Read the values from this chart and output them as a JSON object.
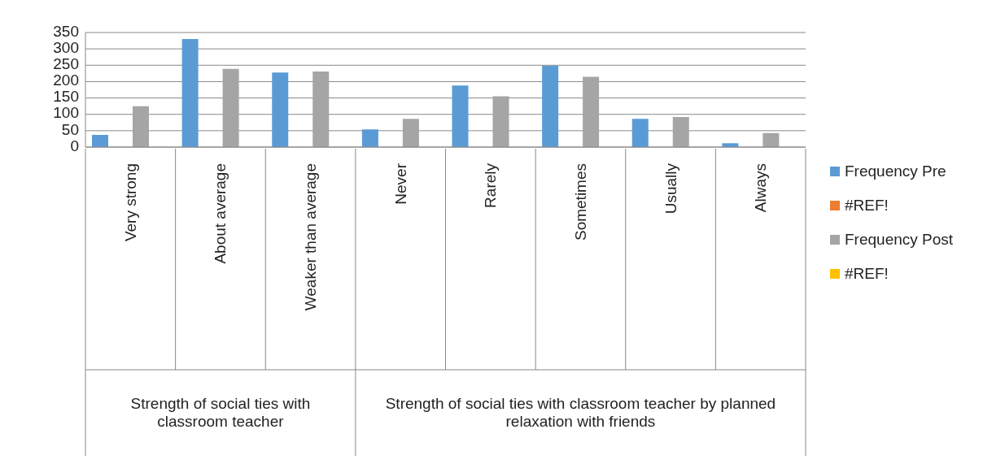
{
  "chart_data": {
    "type": "bar",
    "categories": [
      "Very strong",
      "About average",
      "Weaker than average",
      "Never",
      "Rarely",
      "Sometimes",
      "Usually",
      "Always"
    ],
    "series": [
      {
        "name": "Frequency Pre",
        "color": "#5b9bd5",
        "values": [
          37,
          330,
          228,
          54,
          188,
          249,
          86,
          12
        ]
      },
      {
        "name": "#REF!",
        "color": "#ed7d31",
        "values": [
          null,
          null,
          null,
          null,
          null,
          null,
          null,
          null
        ]
      },
      {
        "name": "Frequency Post",
        "color": "#a5a5a5",
        "values": [
          125,
          239,
          231,
          86,
          155,
          215,
          92,
          43
        ]
      },
      {
        "name": "#REF!",
        "color": "#ffc000",
        "values": [
          null,
          null,
          null,
          null,
          null,
          null,
          null,
          null
        ]
      }
    ],
    "ylim": [
      0,
      350
    ],
    "yticks": [
      0,
      50,
      100,
      150,
      200,
      250,
      300,
      350
    ],
    "grid": "y",
    "legend": "right",
    "annotations": [
      "Strength of social ties with classroom teacher",
      "Strength of social ties with classroom teacher by planned relaxation with friends"
    ]
  }
}
